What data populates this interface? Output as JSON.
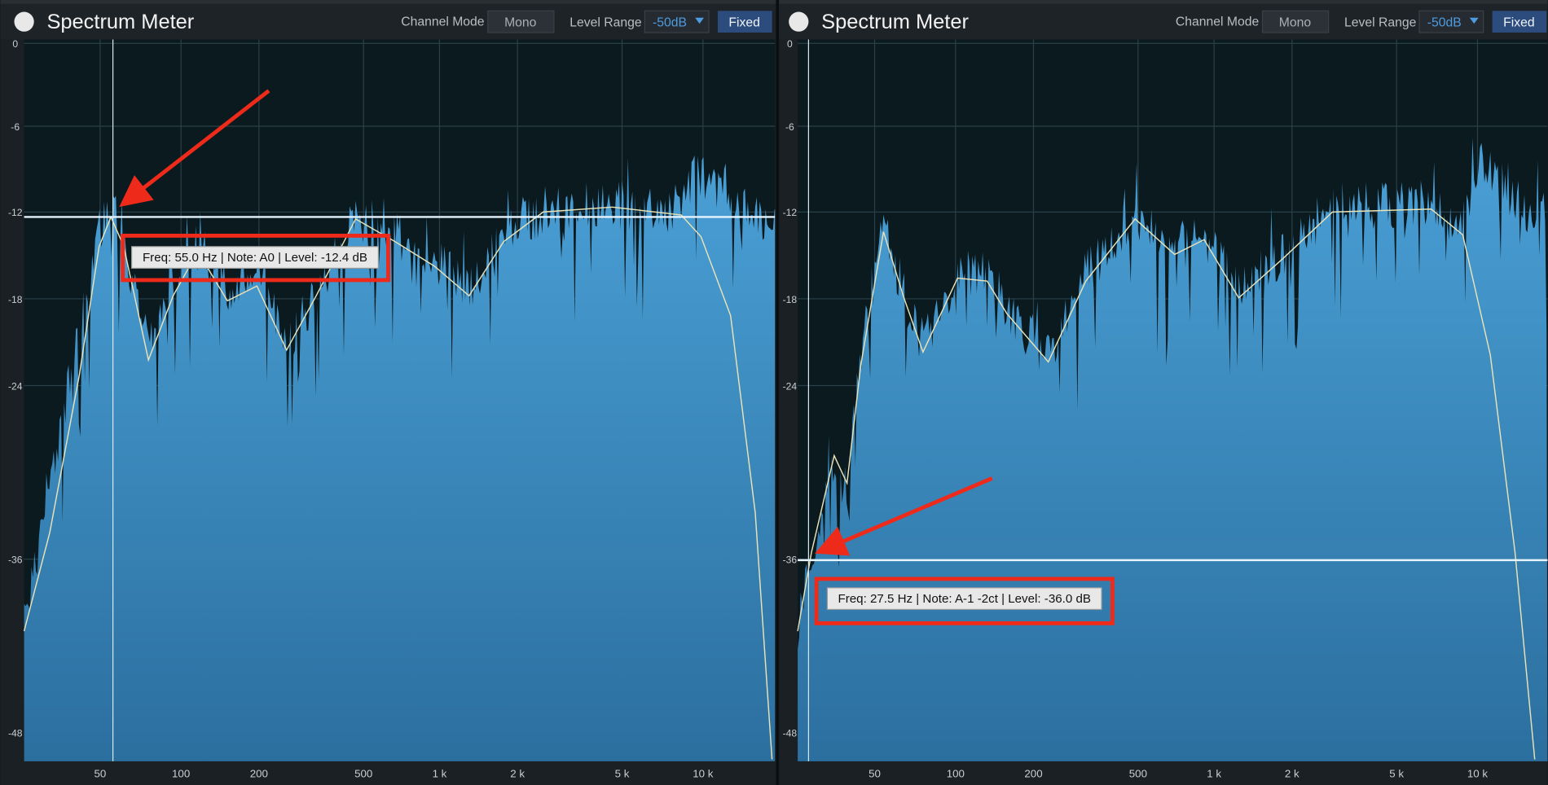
{
  "panels": [
    {
      "title": "Spectrum Meter",
      "channel_mode_label": "Channel Mode",
      "channel_mode": "Mono",
      "level_range_label": "Level Range",
      "level_range": "-50dB",
      "fixed": "Fixed",
      "y_labels": [
        "0",
        "-6",
        "-12",
        "-18",
        "-24",
        "-36",
        "-48"
      ],
      "x_labels": [
        "50",
        "100",
        "200",
        "500",
        "1 k",
        "2 k",
        "5 k",
        "10 k"
      ],
      "tooltip": "Freq: 55.0 Hz | Note: A0 | Level: -12.4 dB"
    },
    {
      "title": "Spectrum Meter",
      "channel_mode_label": "Channel Mode",
      "channel_mode": "Mono",
      "level_range_label": "Level Range",
      "level_range": "-50dB",
      "fixed": "Fixed",
      "y_labels": [
        "0",
        "-6",
        "-12",
        "-18",
        "-24",
        "-36",
        "-48"
      ],
      "x_labels": [
        "50",
        "100",
        "200",
        "500",
        "1 k",
        "2 k",
        "5 k",
        "10 k"
      ],
      "tooltip": "Freq: 27.5 Hz | Note: A-1 -2ct | Level: -36.0 dB"
    }
  ]
}
